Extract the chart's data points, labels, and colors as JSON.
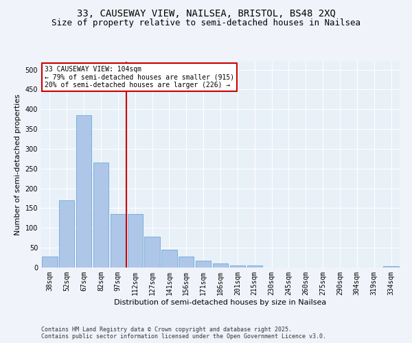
{
  "title_line1": "33, CAUSEWAY VIEW, NAILSEA, BRISTOL, BS48 2XQ",
  "title_line2": "Size of property relative to semi-detached houses in Nailsea",
  "xlabel": "Distribution of semi-detached houses by size in Nailsea",
  "ylabel": "Number of semi-detached properties",
  "categories": [
    "38sqm",
    "52sqm",
    "67sqm",
    "82sqm",
    "97sqm",
    "112sqm",
    "127sqm",
    "141sqm",
    "156sqm",
    "171sqm",
    "186sqm",
    "201sqm",
    "215sqm",
    "230sqm",
    "245sqm",
    "260sqm",
    "275sqm",
    "290sqm",
    "304sqm",
    "319sqm",
    "334sqm"
  ],
  "values": [
    28,
    170,
    385,
    265,
    135,
    135,
    78,
    45,
    28,
    18,
    10,
    5,
    5,
    0,
    0,
    0,
    0,
    0,
    0,
    0,
    3
  ],
  "bar_color": "#aec6e8",
  "bar_edge_color": "#5a9fd4",
  "vline_color": "#cc0000",
  "annotation_box_color": "#cc0000",
  "annotation_lines": [
    "33 CAUSEWAY VIEW: 104sqm",
    "← 79% of semi-detached houses are smaller (915)",
    "20% of semi-detached houses are larger (226) →"
  ],
  "ylim": [
    0,
    520
  ],
  "yticks": [
    0,
    50,
    100,
    150,
    200,
    250,
    300,
    350,
    400,
    450,
    500
  ],
  "bg_color": "#e8f0f8",
  "fig_bg_color": "#f0f4fa",
  "footer_line1": "Contains HM Land Registry data © Crown copyright and database right 2025.",
  "footer_line2": "Contains public sector information licensed under the Open Government Licence v3.0.",
  "grid_color": "#ffffff",
  "title_fontsize": 10,
  "subtitle_fontsize": 9,
  "axis_label_fontsize": 8,
  "tick_fontsize": 7,
  "annotation_fontsize": 7,
  "footer_fontsize": 6
}
